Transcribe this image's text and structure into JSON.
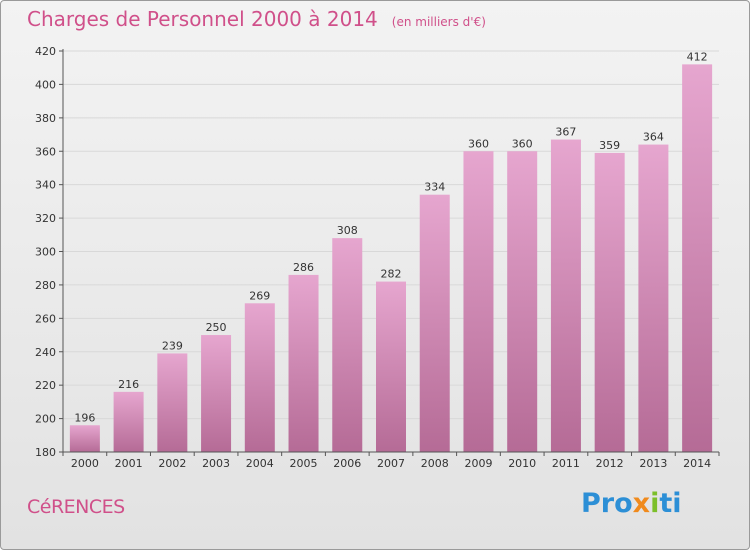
{
  "header": {
    "title": "Charges de Personnel 2000 à 2014",
    "subtitle": "(en milliers d'€)"
  },
  "footer": {
    "place_name": "CéRENCES",
    "logo_text": "Proxiti"
  },
  "colors": {
    "title": "#d0508a",
    "bar_top": "#e6a6cf",
    "bar_bottom": "#b56b96",
    "grid": "#d8d8d8"
  },
  "chart_data": {
    "type": "bar",
    "categories": [
      "2000",
      "2001",
      "2002",
      "2003",
      "2004",
      "2005",
      "2006",
      "2007",
      "2008",
      "2009",
      "2010",
      "2011",
      "2012",
      "2013",
      "2014"
    ],
    "values": [
      196,
      216,
      239,
      250,
      269,
      286,
      308,
      282,
      334,
      360,
      360,
      367,
      359,
      364,
      412
    ],
    "ylim": [
      180,
      420
    ],
    "yticks": [
      180,
      200,
      220,
      240,
      260,
      280,
      300,
      320,
      340,
      360,
      380,
      400,
      420
    ],
    "grid": true,
    "legend": "none"
  }
}
